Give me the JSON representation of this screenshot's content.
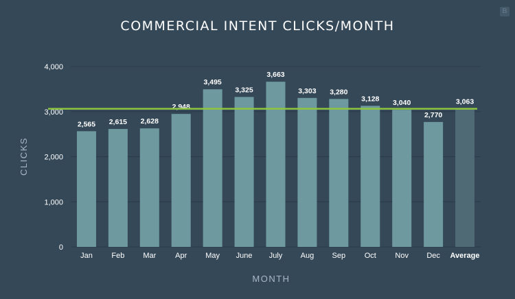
{
  "badge_text": "B",
  "chart_data": {
    "type": "bar",
    "title": "COMMERCIAL INTENT CLICKS/MONTH",
    "xlabel": "MONTH",
    "ylabel": "CLICKS",
    "categories": [
      "Jan",
      "Feb",
      "Mar",
      "Apr",
      "May",
      "June",
      "July",
      "Aug",
      "Sep",
      "Oct",
      "Nov",
      "Dec",
      "Average"
    ],
    "values": [
      2565,
      2615,
      2628,
      2948,
      3495,
      3325,
      3663,
      3303,
      3280,
      3128,
      3040,
      2770,
      3063
    ],
    "value_labels": [
      "2,565",
      "2,615",
      "2,628",
      "2,948",
      "3,495",
      "3,325",
      "3,663",
      "3,303",
      "3,280",
      "3,128",
      "3,040",
      "2,770",
      "3,063"
    ],
    "yticks": [
      0,
      1000,
      2000,
      3000,
      4000
    ],
    "ytick_labels": [
      "0",
      "1,000",
      "2,000",
      "3,000",
      "4,000"
    ],
    "ylim": [
      0,
      4000
    ],
    "reference_line": 3063,
    "grid": true,
    "colors": {
      "background": "#354858",
      "bar": "#6e9a9f",
      "average_bar": "#4f6a74",
      "reference_line": "#8ec63f",
      "grid": "#2b3a47",
      "axis_text": "#ffffff",
      "axis_title": "#a8b8c4"
    }
  }
}
